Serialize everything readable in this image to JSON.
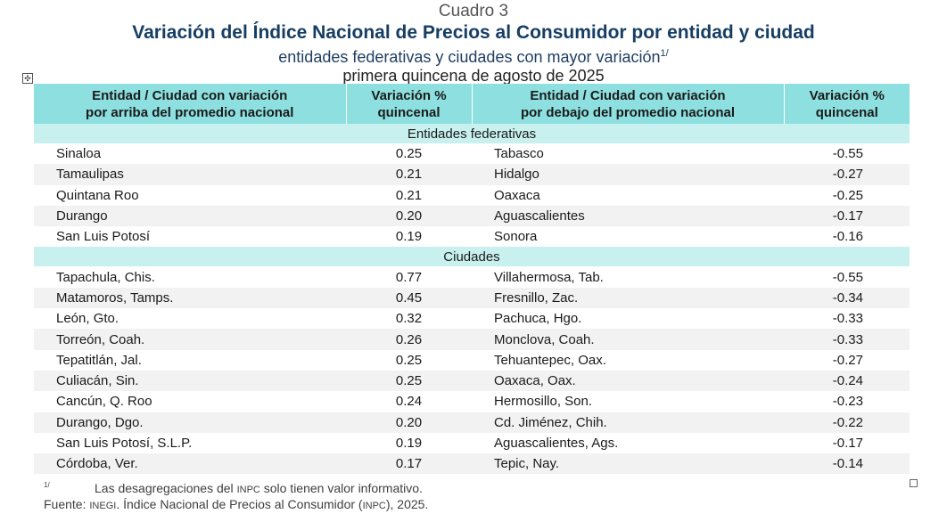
{
  "title": {
    "label": "Cuadro 3",
    "main": "Variación del Índice Nacional de Precios al Consumidor por entidad y ciudad",
    "subtitle": "entidades federativas y ciudades con mayor variación",
    "subtitle_note": "1/",
    "period": "primera quincena de agosto de 2025"
  },
  "header": {
    "col1_line1": "Entidad / Ciudad con variación",
    "col1_line2": "por arriba del promedio nacional",
    "col2_line1": "Variación %",
    "col2_line2": "quincenal",
    "col3_line1": "Entidad / Ciudad con variación",
    "col3_line2": "por debajo del promedio nacional",
    "col4_line1": "Variación %",
    "col4_line2": "quincenal"
  },
  "sections": [
    {
      "label": "Entidades federativas",
      "rows": [
        {
          "above": "Sinaloa",
          "above_val": "0.25",
          "below": "Tabasco",
          "below_val": "-0.55"
        },
        {
          "above": "Tamaulipas",
          "above_val": "0.21",
          "below": "Hidalgo",
          "below_val": "-0.27"
        },
        {
          "above": "Quintana Roo",
          "above_val": "0.21",
          "below": "Oaxaca",
          "below_val": "-0.25"
        },
        {
          "above": "Durango",
          "above_val": "0.20",
          "below": "Aguascalientes",
          "below_val": "-0.17"
        },
        {
          "above": "San Luis Potosí",
          "above_val": "0.19",
          "below": "Sonora",
          "below_val": "-0.16"
        }
      ]
    },
    {
      "label": "Ciudades",
      "rows": [
        {
          "above": "Tapachula, Chis.",
          "above_val": "0.77",
          "below": "Villahermosa, Tab.",
          "below_val": "-0.55"
        },
        {
          "above": "Matamoros, Tamps.",
          "above_val": "0.45",
          "below": "Fresnillo, Zac.",
          "below_val": "-0.34"
        },
        {
          "above": "León, Gto.",
          "above_val": "0.32",
          "below": "Pachuca, Hgo.",
          "below_val": "-0.33"
        },
        {
          "above": "Torreón, Coah.",
          "above_val": "0.26",
          "below": "Monclova, Coah.",
          "below_val": "-0.33"
        },
        {
          "above": "Tepatitlán, Jal.",
          "above_val": "0.25",
          "below": "Tehuantepec, Oax.",
          "below_val": "-0.27"
        },
        {
          "above": "Culiacán, Sin.",
          "above_val": "0.25",
          "below": "Oaxaca, Oax.",
          "below_val": "-0.24"
        },
        {
          "above": "Cancún, Q. Roo",
          "above_val": "0.24",
          "below": "Hermosillo, Son.",
          "below_val": "-0.23"
        },
        {
          "above": "Durango, Dgo.",
          "above_val": "0.20",
          "below": "Cd. Jiménez, Chih.",
          "below_val": "-0.22"
        },
        {
          "above": "San Luis Potosí, S.L.P.",
          "above_val": "0.19",
          "below": "Aguascalientes, Ags.",
          "below_val": "-0.17"
        },
        {
          "above": "Córdoba, Ver.",
          "above_val": "0.17",
          "below": "Tepic, Nay.",
          "below_val": "-0.14"
        }
      ]
    }
  ],
  "footnote": {
    "mark": "1/",
    "text_before": "Las desagregaciones del ",
    "text_abbr": "INPC",
    "text_after": " solo tienen valor informativo."
  },
  "source": {
    "label": "Fuente: ",
    "org": "INEGI",
    "text_before": ". Índice Nacional de Precios al Consumidor (",
    "abbr": "INPC",
    "text_after": "), 2025."
  },
  "icons": {
    "move_handle": "table-move-icon",
    "resize_handle": "table-resize-icon"
  },
  "colors": {
    "header_bg": "#8ee0e0",
    "section_bg": "#c7f0ee",
    "stripe_bg": "#f2f2f2",
    "title_color": "#163e64"
  }
}
